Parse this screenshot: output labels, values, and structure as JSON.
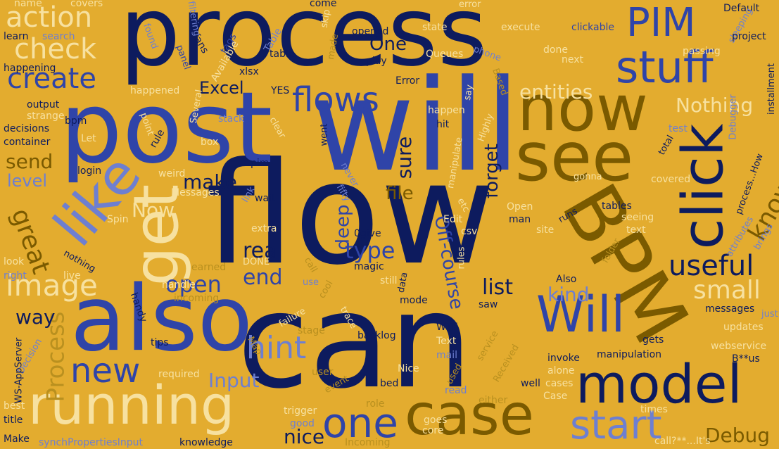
{
  "background_color": "#e3ac2f",
  "words": [
    "process",
    "flow",
    "can",
    "will",
    "post",
    "also",
    "see",
    "get",
    "click",
    "like",
    "running",
    "model",
    "case",
    "BPM",
    "start",
    "stuff",
    "now",
    "PIM",
    "one",
    "Will",
    "image",
    "action",
    "check",
    "create",
    "new",
    "hint",
    "useful",
    "flows",
    "open",
    "end",
    "real",
    "type",
    "list",
    "small",
    "kind",
    "Input",
    "Process",
    "nice",
    "Debug",
    "Excel",
    "entities",
    "Nothing",
    "great",
    "make",
    "know",
    "send",
    "level",
    "Now",
    "file",
    "sure",
    "forget",
    "deep",
    "way",
    "One",
    "Off-course",
    "Spin",
    "Messages",
    "login",
    "pim",
    "bpm",
    "decisions",
    "container",
    "output",
    "strange",
    "happened",
    "happening",
    "learn",
    "search",
    "name",
    "covers",
    "come",
    "error",
    "Default",
    "fans",
    "tags",
    "Available",
    "Table",
    "xlsx",
    "filtering",
    "panel",
    "found",
    "skip",
    "made",
    "opened",
    "state",
    "execute",
    "clickable",
    "phone",
    "Queues",
    "sleeping",
    "project",
    "passing",
    "installment",
    "done",
    "next",
    "play",
    "Error",
    "Based",
    "YES",
    "table",
    "say",
    "Highly",
    "happen",
    "hit",
    "stack",
    "box",
    "rule",
    "point",
    "Several",
    "clear",
    "went",
    "manipulate",
    "Debugger",
    "test",
    "total",
    "gonna",
    "covered",
    "tables",
    "seeing",
    "text",
    "attributes",
    "brings",
    "folder",
    "Also",
    "site",
    "man",
    "Open",
    "runs",
    "etc",
    "fifty",
    "never",
    "link",
    "wait",
    "extra",
    "weird",
    "look",
    "right",
    "live",
    "nothing",
    "earned",
    "DONE",
    "call",
    "handle",
    "incoming",
    "use",
    "cool",
    "magic",
    "still",
    "data",
    "mode",
    "rules",
    "csv",
    "Edit",
    "0give",
    "failure",
    "trace",
    "saw",
    "messages",
    "just",
    "updates",
    "WTF",
    "gets",
    "invoke",
    "manipulation",
    "webservice",
    "B**us",
    "alone",
    "cases",
    "well",
    "Received",
    "service",
    "Case",
    "times",
    "call?**...It's",
    "Text",
    "mail",
    "used",
    "read",
    "either",
    "role",
    "trigger",
    "goes",
    "core",
    "Incoming",
    "event",
    "user",
    "bed",
    "Nice",
    "required",
    "tips",
    "Map",
    "stage",
    "backlog",
    "Decision",
    "WS-AppServer",
    "best",
    "title",
    "Make",
    "synchPropertiesInput",
    "knowledge",
    "good",
    "Let",
    "process...How",
    "handy"
  ]
}
